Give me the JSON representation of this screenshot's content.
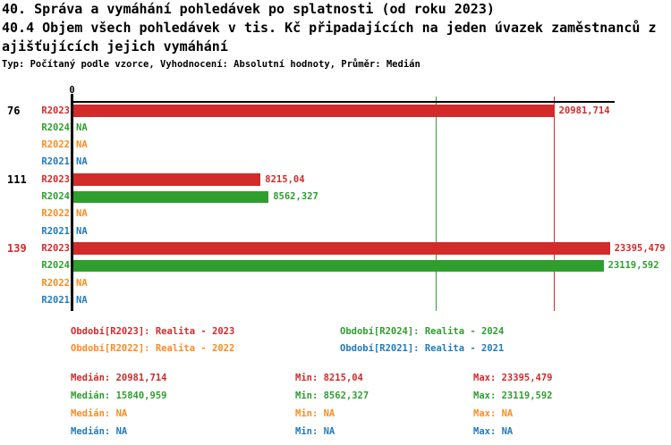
{
  "title": {
    "line1": "40. Správa a vymáhání pohledávek po splatnosti (od roku 2023)",
    "line2": "40.4 Objem všech pohledávek v tis. Kč připadajících na jeden úvazek zaměstnanců z",
    "line3": "ajišťujících jejich vymáhání",
    "subtitle": "Typ: Počítaný podle vzorce, Vyhodnocení: Absolutní hodnoty, Průměr: Medián"
  },
  "colors": {
    "R2023": "#d32a2a",
    "R2024": "#2f9e2f",
    "R2022": "#ff8a1f",
    "R2021": "#1f7bc0",
    "axis": "#000000",
    "group_label_default": "#000000",
    "group_label_highlight": "#d32a2a"
  },
  "chart_data": {
    "type": "bar",
    "orientation": "horizontal",
    "title": "40.4 Objem všech pohledávek v tis. Kč připadajících na jeden úvazek zaměstnanců zajišťujících jejich vymáhání",
    "xlabel": "",
    "ylabel": "",
    "xlim": [
      0,
      23600
    ],
    "x_tick_labels": [
      "0"
    ],
    "grid": false,
    "na_text": "NA",
    "series_names": [
      "R2023",
      "R2024",
      "R2022",
      "R2021"
    ],
    "median_lines": [
      {
        "series": "R2023",
        "value": 20981.714
      },
      {
        "series": "R2024",
        "value": 15840.959
      }
    ],
    "groups": [
      {
        "label": "76",
        "highlight": false,
        "bars": [
          {
            "series": "R2023",
            "value": 20981.714,
            "display": "20981,714"
          },
          {
            "series": "R2024",
            "value": null,
            "display": "NA"
          },
          {
            "series": "R2022",
            "value": null,
            "display": "NA"
          },
          {
            "series": "R2021",
            "value": null,
            "display": "NA"
          }
        ]
      },
      {
        "label": "111",
        "highlight": false,
        "bars": [
          {
            "series": "R2023",
            "value": 8215.04,
            "display": "8215,04"
          },
          {
            "series": "R2024",
            "value": 8562.327,
            "display": "8562,327"
          },
          {
            "series": "R2022",
            "value": null,
            "display": "NA"
          },
          {
            "series": "R2021",
            "value": null,
            "display": "NA"
          }
        ]
      },
      {
        "label": "139",
        "highlight": true,
        "bars": [
          {
            "series": "R2023",
            "value": 23395.479,
            "display": "23395,479"
          },
          {
            "series": "R2024",
            "value": 23119.592,
            "display": "23119,592"
          },
          {
            "series": "R2022",
            "value": null,
            "display": "NA"
          },
          {
            "series": "R2021",
            "value": null,
            "display": "NA"
          }
        ]
      }
    ]
  },
  "legend": [
    {
      "series": "R2023",
      "text": "Období[R2023]: Realita - 2023",
      "col": 0,
      "row": 0
    },
    {
      "series": "R2024",
      "text": "Období[R2024]: Realita - 2024",
      "col": 1,
      "row": 0
    },
    {
      "series": "R2022",
      "text": "Období[R2022]: Realita - 2022",
      "col": 0,
      "row": 1
    },
    {
      "series": "R2021",
      "text": "Období[R2021]: Realita - 2021",
      "col": 1,
      "row": 1
    }
  ],
  "stats": {
    "label_median": "Medián: ",
    "label_min": "Min: ",
    "label_max": "Max: ",
    "rows": [
      {
        "series": "R2023",
        "median": "20981,714",
        "min": "8215,04",
        "max": "23395,479"
      },
      {
        "series": "R2024",
        "median": "15840,959",
        "min": "8562,327",
        "max": "23119,592"
      },
      {
        "series": "R2022",
        "median": "NA",
        "min": "NA",
        "max": "NA"
      },
      {
        "series": "R2021",
        "median": "NA",
        "min": "NA",
        "max": "NA"
      }
    ]
  }
}
